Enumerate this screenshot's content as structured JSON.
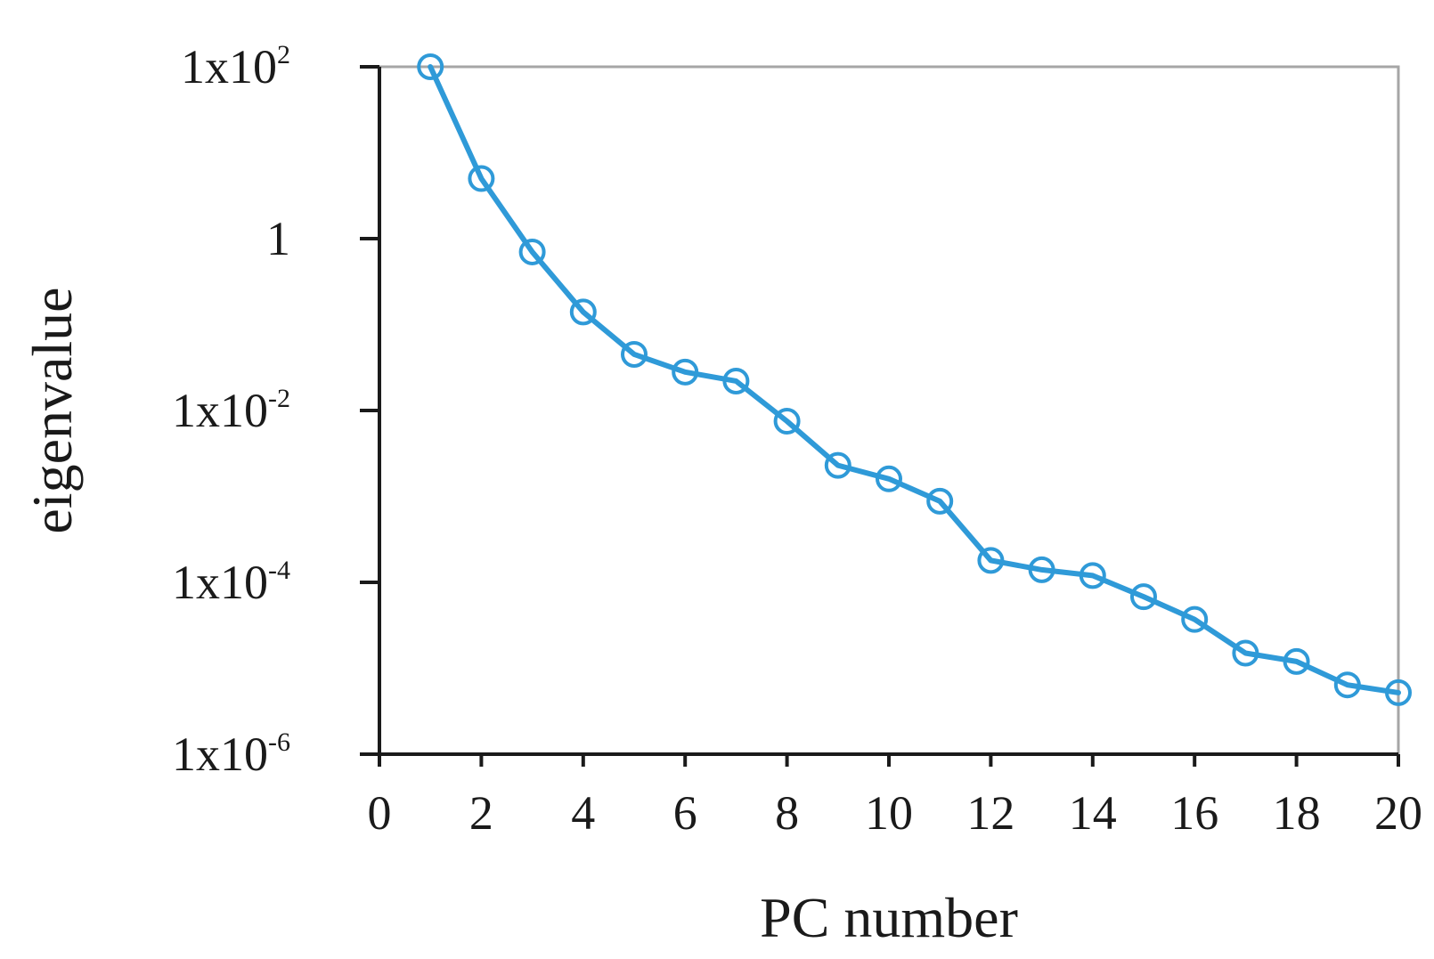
{
  "chart_data": {
    "type": "line",
    "title": "",
    "xlabel": "PC number",
    "ylabel": "eigenvalue",
    "x_ticks": [
      "0",
      "2",
      "4",
      "6",
      "8",
      "10",
      "12",
      "14",
      "16",
      "18",
      "20"
    ],
    "xlim": [
      0,
      20
    ],
    "y_scale": "log",
    "ylim": [
      1e-06,
      100
    ],
    "y_ticks": [
      {
        "value": 100,
        "base": "1x10",
        "exp": "2"
      },
      {
        "value": 1,
        "base": "1",
        "exp": ""
      },
      {
        "value": 0.01,
        "base": "1x10",
        "exp": "-2"
      },
      {
        "value": 0.0001,
        "base": "1x10",
        "exp": "-4"
      },
      {
        "value": 1e-06,
        "base": "1x10",
        "exp": "-6"
      }
    ],
    "grid": false,
    "line_color": "#2f9ad8",
    "marker": "open-circle",
    "series": [
      {
        "x": [
          1,
          2,
          3,
          4,
          5,
          6,
          7,
          8,
          9,
          10,
          11,
          12,
          13,
          14,
          15,
          16,
          17,
          18,
          19,
          20
        ],
        "values": [
          100,
          5,
          0.7,
          0.14,
          0.045,
          0.028,
          0.022,
          0.0075,
          0.0023,
          0.0016,
          0.00088,
          0.00018,
          0.00014,
          0.00012,
          6.8e-05,
          3.7e-05,
          1.5e-05,
          1.2e-05,
          6.4e-06,
          5.2e-06
        ]
      }
    ]
  }
}
